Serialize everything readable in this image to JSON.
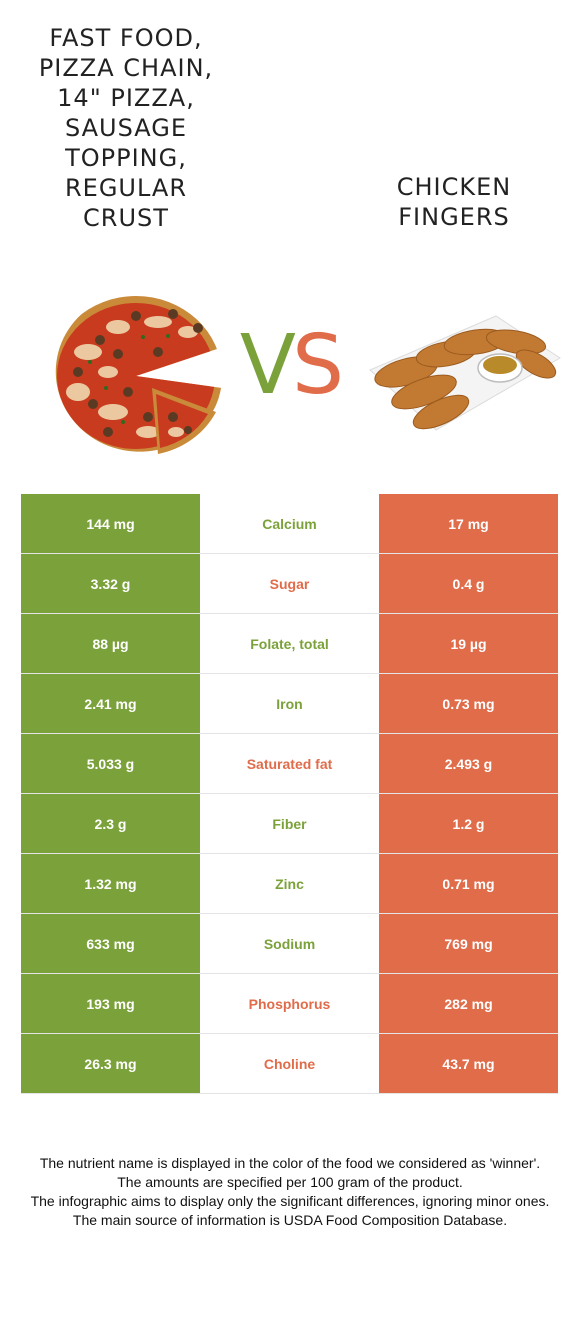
{
  "titles": {
    "left": "FAST FOOD, PIZZA CHAIN, 14\" PIZZA, SAUSAGE TOPPING, REGULAR CRUST",
    "right": "CHICKEN FINGERS"
  },
  "vs": {
    "v": "V",
    "s": "S"
  },
  "colors": {
    "left_food": "#7ba23a",
    "right_food": "#e06c4a"
  },
  "images": {
    "left": "pizza-image",
    "right": "chicken-fingers-image"
  },
  "rows": [
    {
      "left": "144 mg",
      "nutrient": "Calcium",
      "right": "17 mg",
      "winner": "left"
    },
    {
      "left": "3.32 g",
      "nutrient": "Sugar",
      "right": "0.4 g",
      "winner": "right"
    },
    {
      "left": "88 µg",
      "nutrient": "Folate, total",
      "right": "19 µg",
      "winner": "left"
    },
    {
      "left": "2.41 mg",
      "nutrient": "Iron",
      "right": "0.73 mg",
      "winner": "left"
    },
    {
      "left": "5.033 g",
      "nutrient": "Saturated fat",
      "right": "2.493 g",
      "winner": "right"
    },
    {
      "left": "2.3 g",
      "nutrient": "Fiber",
      "right": "1.2 g",
      "winner": "left"
    },
    {
      "left": "1.32 mg",
      "nutrient": "Zinc",
      "right": "0.71 mg",
      "winner": "left"
    },
    {
      "left": "633 mg",
      "nutrient": "Sodium",
      "right": "769 mg",
      "winner": "left"
    },
    {
      "left": "193 mg",
      "nutrient": "Phosphorus",
      "right": "282 mg",
      "winner": "right"
    },
    {
      "left": "26.3 mg",
      "nutrient": "Choline",
      "right": "43.7 mg",
      "winner": "right"
    }
  ],
  "footer": [
    "The nutrient name is displayed in the color of the food we considered as 'winner'.",
    "The amounts are specified per 100 gram of the product.",
    "The infographic aims to display only the significant differences, ignoring minor ones.",
    "The main source of information is USDA Food Composition Database."
  ]
}
